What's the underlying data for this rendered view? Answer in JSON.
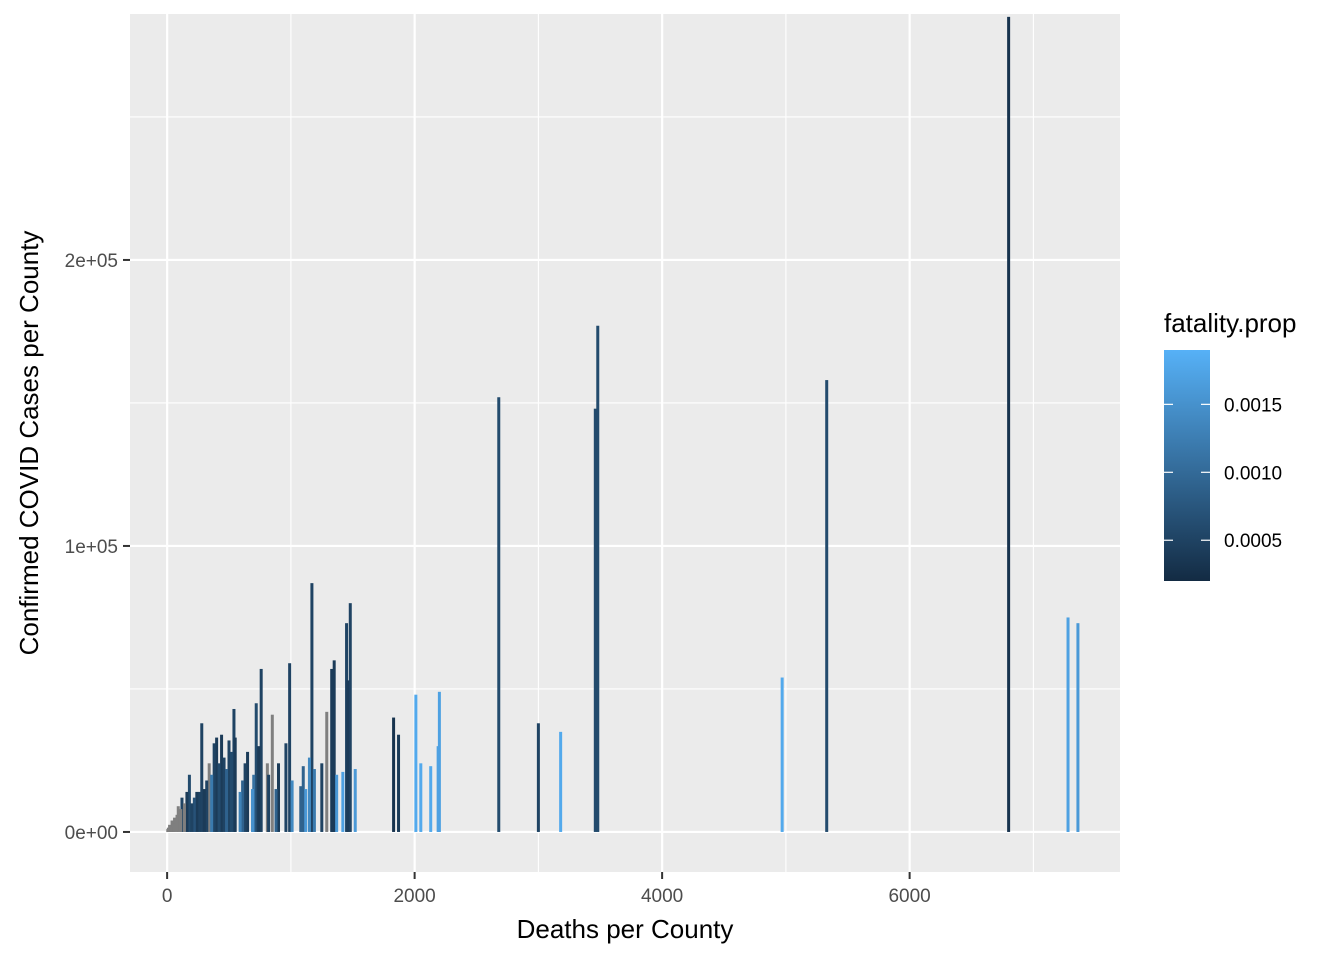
{
  "chart_data": {
    "type": "bar",
    "xlabel": "Deaths per County",
    "ylabel": "Confirmed COVID Cases per County",
    "xlim": [
      -300,
      7700
    ],
    "ylim": [
      -14000,
      286000
    ],
    "x_ticks": [
      0,
      2000,
      4000,
      6000
    ],
    "x_tick_labels": [
      "0",
      "2000",
      "4000",
      "6000"
    ],
    "y_ticks": [
      0,
      100000,
      200000
    ],
    "y_tick_labels": [
      "0e+00",
      "1e+05",
      "2e+05"
    ],
    "grid": true,
    "na_color": "#7f7f7f",
    "color_scale": {
      "name": "fatality.prop",
      "low_color": "#132b43",
      "high_color": "#56b1f7",
      "limits": [
        0.0002,
        0.0019
      ],
      "breaks": [
        0.0005,
        0.001,
        0.0015
      ],
      "break_labels": [
        "0.0005",
        "0.0010",
        "0.0015"
      ]
    },
    "legend_position": "right",
    "bars": [
      {
        "x": 6800,
        "y": 285000,
        "fatality_prop": 0.0003
      },
      {
        "x": 3480,
        "y": 177000,
        "fatality_prop": 0.0006
      },
      {
        "x": 3460,
        "y": 148000,
        "fatality_prop": 0.0006
      },
      {
        "x": 5330,
        "y": 158000,
        "fatality_prop": 0.0006
      },
      {
        "x": 2680,
        "y": 152000,
        "fatality_prop": 0.0006
      },
      {
        "x": 7280,
        "y": 75000,
        "fatality_prop": 0.0017
      },
      {
        "x": 7360,
        "y": 73000,
        "fatality_prop": 0.0016
      },
      {
        "x": 4970,
        "y": 54000,
        "fatality_prop": 0.0018
      },
      {
        "x": 3000,
        "y": 38000,
        "fatality_prop": 0.0005
      },
      {
        "x": 3180,
        "y": 35000,
        "fatality_prop": 0.0018
      },
      {
        "x": 2010,
        "y": 48000,
        "fatality_prop": 0.0018
      },
      {
        "x": 2200,
        "y": 49000,
        "fatality_prop": 0.0017
      },
      {
        "x": 2190,
        "y": 30000,
        "fatality_prop": 0.0017
      },
      {
        "x": 2050,
        "y": 24000,
        "fatality_prop": 0.0018
      },
      {
        "x": 2130,
        "y": 23000,
        "fatality_prop": 0.0018
      },
      {
        "x": 1830,
        "y": 40000,
        "fatality_prop": 0.0003
      },
      {
        "x": 1870,
        "y": 34000,
        "fatality_prop": 0.0004
      },
      {
        "x": 1480,
        "y": 80000,
        "fatality_prop": 0.0005
      },
      {
        "x": 1450,
        "y": 73000,
        "fatality_prop": 0.0005
      },
      {
        "x": 1460,
        "y": 53000,
        "fatality_prop": 0.0004
      },
      {
        "x": 1520,
        "y": 22000,
        "fatality_prop": 0.0016
      },
      {
        "x": 1420,
        "y": 21000,
        "fatality_prop": 0.0017
      },
      {
        "x": 1350,
        "y": 60000,
        "fatality_prop": 0.0004
      },
      {
        "x": 1330,
        "y": 57000,
        "fatality_prop": 0.0004
      },
      {
        "x": 1340,
        "y": 22000,
        "fatality_prop": 0.0004
      },
      {
        "x": 1370,
        "y": 20000,
        "fatality_prop": 0.0016
      },
      {
        "x": 1290,
        "y": 42000,
        "fatality_prop": null
      },
      {
        "x": 1250,
        "y": 24000,
        "fatality_prop": 0.0005
      },
      {
        "x": 1170,
        "y": 87000,
        "fatality_prop": 0.0005
      },
      {
        "x": 1150,
        "y": 26000,
        "fatality_prop": 0.0014
      },
      {
        "x": 1190,
        "y": 22000,
        "fatality_prop": 0.0012
      },
      {
        "x": 1100,
        "y": 23000,
        "fatality_prop": 0.0009
      },
      {
        "x": 1080,
        "y": 16000,
        "fatality_prop": 0.0009
      },
      {
        "x": 1120,
        "y": 15000,
        "fatality_prop": 0.0016
      },
      {
        "x": 990,
        "y": 59000,
        "fatality_prop": 0.0005
      },
      {
        "x": 960,
        "y": 31000,
        "fatality_prop": 0.0005
      },
      {
        "x": 1010,
        "y": 18000,
        "fatality_prop": 0.0014
      },
      {
        "x": 900,
        "y": 24000,
        "fatality_prop": 0.0004
      },
      {
        "x": 880,
        "y": 15000,
        "fatality_prop": 0.0009
      },
      {
        "x": 850,
        "y": 41000,
        "fatality_prop": null
      },
      {
        "x": 810,
        "y": 24000,
        "fatality_prop": null
      },
      {
        "x": 820,
        "y": 20000,
        "fatality_prop": 0.0005
      },
      {
        "x": 760,
        "y": 57000,
        "fatality_prop": 0.0005
      },
      {
        "x": 720,
        "y": 45000,
        "fatality_prop": 0.0006
      },
      {
        "x": 740,
        "y": 30000,
        "fatality_prop": 0.0004
      },
      {
        "x": 700,
        "y": 20000,
        "fatality_prop": 0.0011
      },
      {
        "x": 690,
        "y": 15000,
        "fatality_prop": 0.0015
      },
      {
        "x": 650,
        "y": 28000,
        "fatality_prop": 0.0004
      },
      {
        "x": 630,
        "y": 24000,
        "fatality_prop": 0.0005
      },
      {
        "x": 610,
        "y": 18000,
        "fatality_prop": 0.0009
      },
      {
        "x": 590,
        "y": 14000,
        "fatality_prop": 0.0013
      },
      {
        "x": 540,
        "y": 43000,
        "fatality_prop": 0.0005
      },
      {
        "x": 550,
        "y": 33000,
        "fatality_prop": 0.0004
      },
      {
        "x": 520,
        "y": 28000,
        "fatality_prop": 0.0006
      },
      {
        "x": 500,
        "y": 32000,
        "fatality_prop": 0.0005
      },
      {
        "x": 480,
        "y": 22000,
        "fatality_prop": 0.0009
      },
      {
        "x": 460,
        "y": 26000,
        "fatality_prop": 0.0005
      },
      {
        "x": 440,
        "y": 34000,
        "fatality_prop": 0.0004
      },
      {
        "x": 420,
        "y": 24000,
        "fatality_prop": 0.0006
      },
      {
        "x": 400,
        "y": 33000,
        "fatality_prop": 0.0004
      },
      {
        "x": 380,
        "y": 31000,
        "fatality_prop": 0.0005
      },
      {
        "x": 360,
        "y": 20000,
        "fatality_prop": 0.0012
      },
      {
        "x": 340,
        "y": 24000,
        "fatality_prop": null
      },
      {
        "x": 320,
        "y": 18000,
        "fatality_prop": 0.0005
      },
      {
        "x": 280,
        "y": 38000,
        "fatality_prop": 0.0005
      },
      {
        "x": 300,
        "y": 15000,
        "fatality_prop": 0.0004
      },
      {
        "x": 260,
        "y": 14000,
        "fatality_prop": 0.0005
      },
      {
        "x": 240,
        "y": 14000,
        "fatality_prop": 0.0004
      },
      {
        "x": 220,
        "y": 12000,
        "fatality_prop": 0.0007
      },
      {
        "x": 200,
        "y": 10000,
        "fatality_prop": 0.0005
      },
      {
        "x": 180,
        "y": 20000,
        "fatality_prop": 0.0006
      },
      {
        "x": 160,
        "y": 14000,
        "fatality_prop": 0.0004
      },
      {
        "x": 140,
        "y": 10000,
        "fatality_prop": null
      },
      {
        "x": 120,
        "y": 12000,
        "fatality_prop": 0.0005
      },
      {
        "x": 110,
        "y": 8000,
        "fatality_prop": null
      },
      {
        "x": 90,
        "y": 9000,
        "fatality_prop": null
      },
      {
        "x": 80,
        "y": 6000,
        "fatality_prop": null
      },
      {
        "x": 60,
        "y": 5000,
        "fatality_prop": null
      },
      {
        "x": 50,
        "y": 3000,
        "fatality_prop": null
      },
      {
        "x": 40,
        "y": 4000,
        "fatality_prop": null
      },
      {
        "x": 30,
        "y": 2000,
        "fatality_prop": null
      },
      {
        "x": 20,
        "y": 2500,
        "fatality_prop": null
      },
      {
        "x": 10,
        "y": 1500,
        "fatality_prop": null
      },
      {
        "x": 5,
        "y": 1000,
        "fatality_prop": null
      }
    ]
  }
}
